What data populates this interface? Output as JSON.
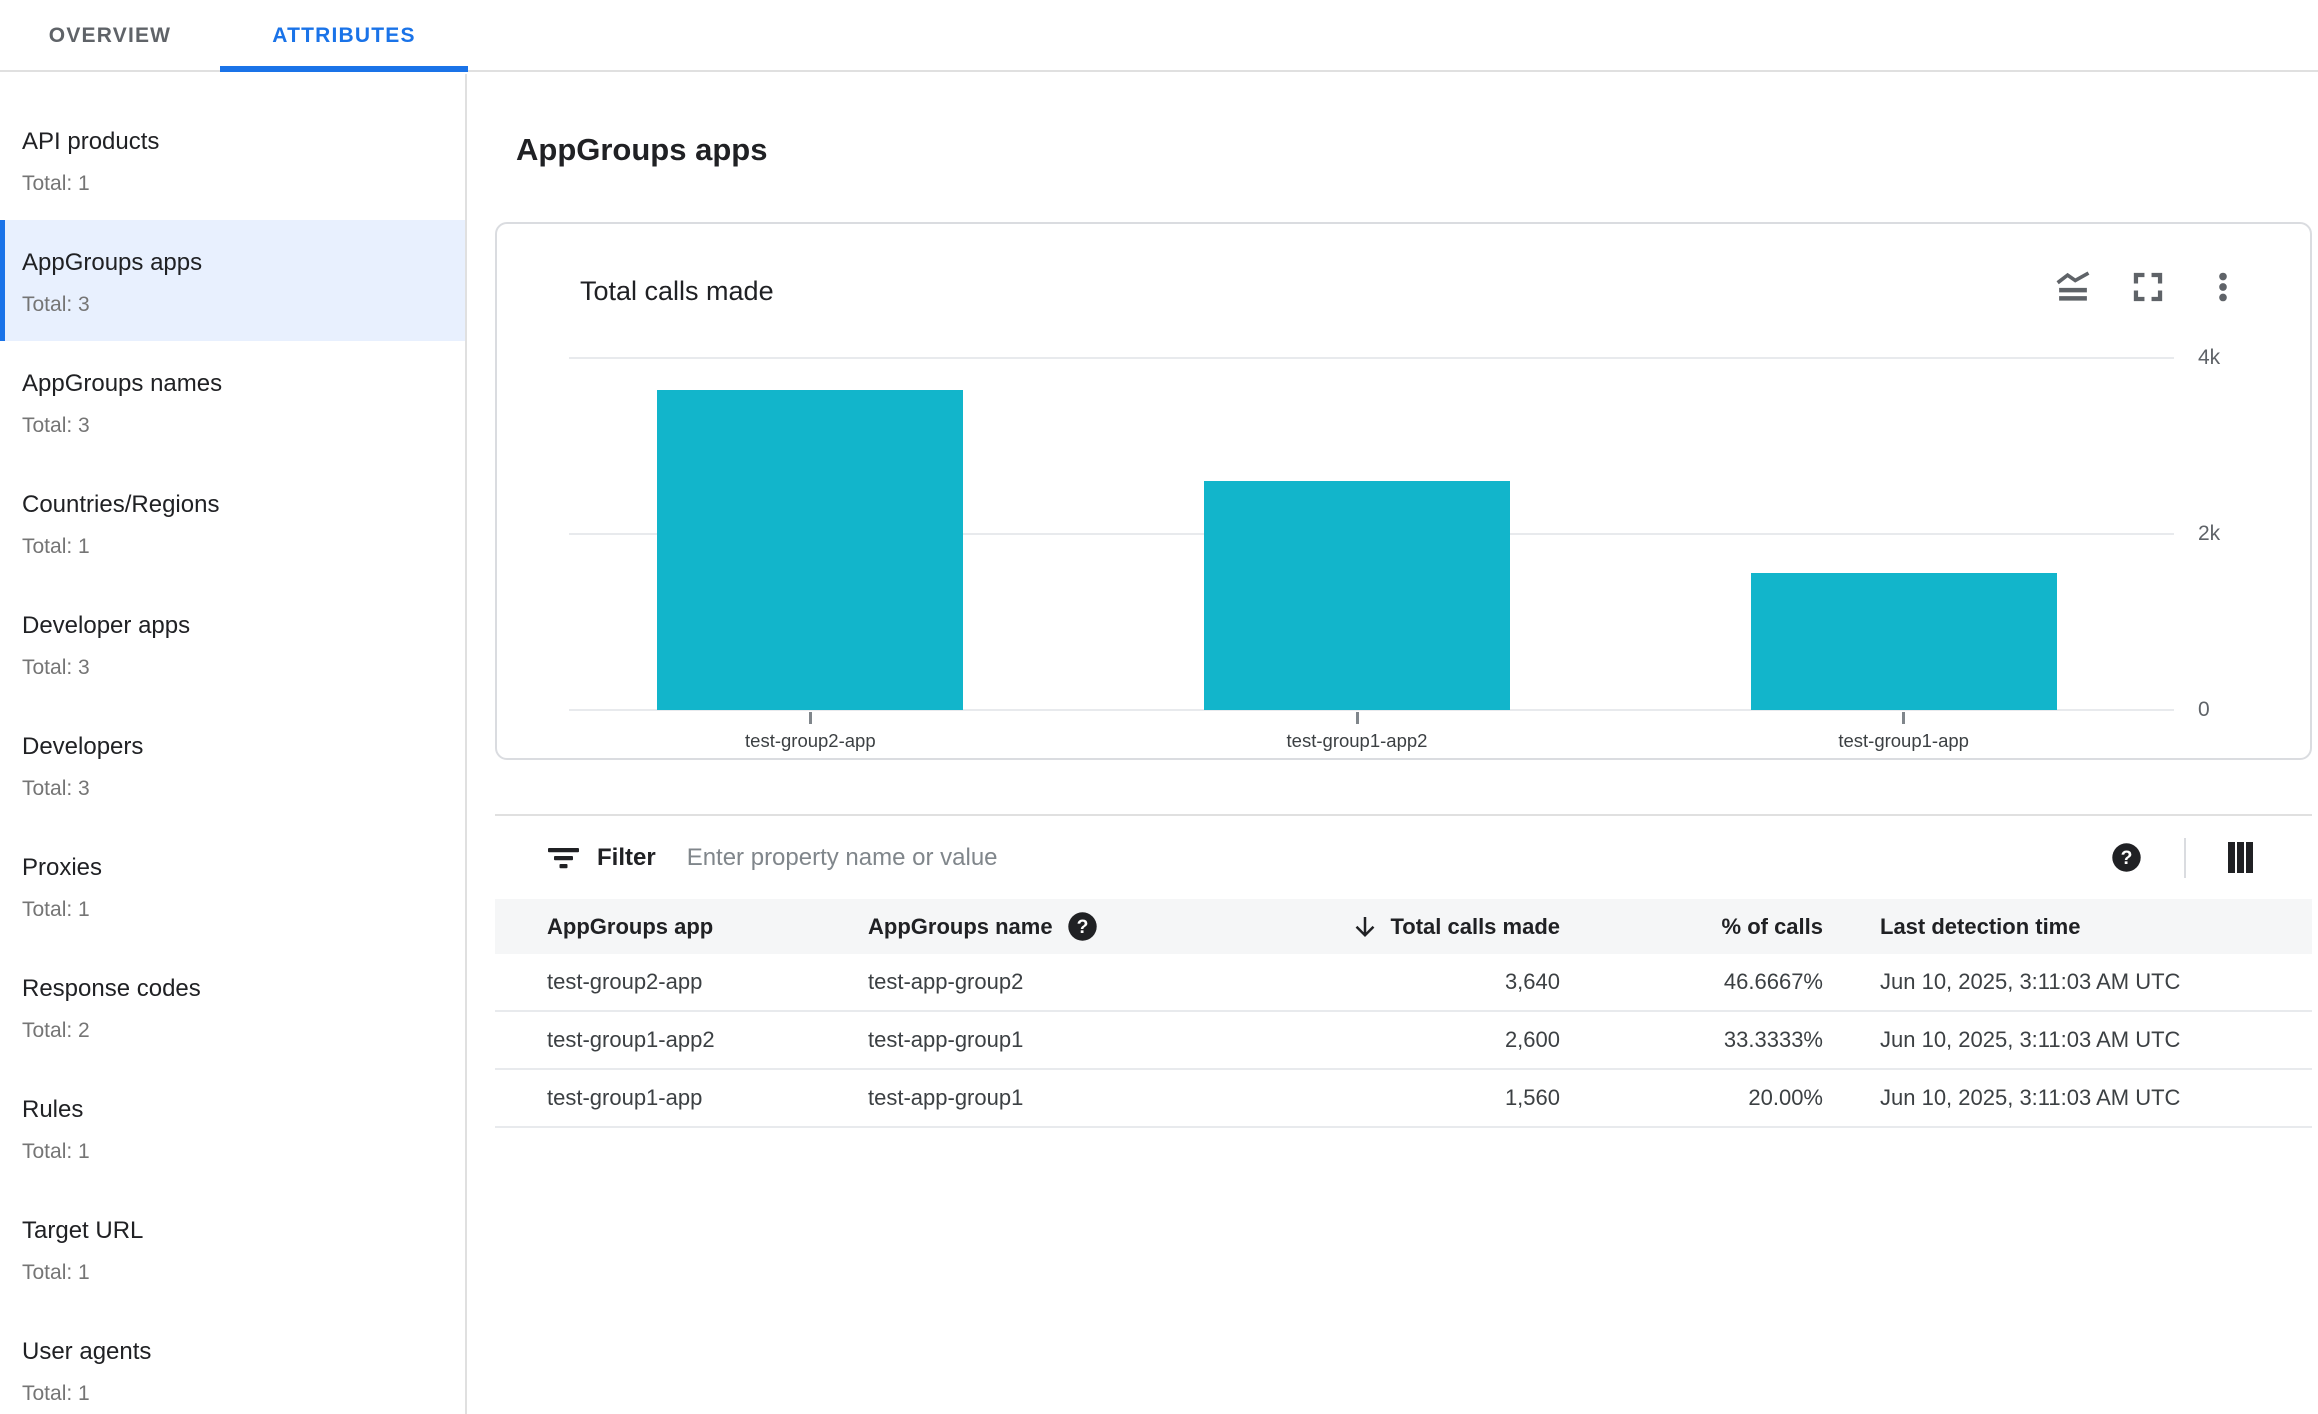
{
  "tabs": [
    {
      "label": "OVERVIEW",
      "active": false
    },
    {
      "label": "ATTRIBUTES",
      "active": true
    }
  ],
  "sidebar": {
    "items": [
      {
        "title": "API products",
        "total": "Total: 1",
        "selected": false
      },
      {
        "title": "AppGroups apps",
        "total": "Total: 3",
        "selected": true
      },
      {
        "title": "AppGroups names",
        "total": "Total: 3",
        "selected": false
      },
      {
        "title": "Countries/Regions",
        "total": "Total: 1",
        "selected": false
      },
      {
        "title": "Developer apps",
        "total": "Total: 3",
        "selected": false
      },
      {
        "title": "Developers",
        "total": "Total: 3",
        "selected": false
      },
      {
        "title": "Proxies",
        "total": "Total: 1",
        "selected": false
      },
      {
        "title": "Response codes",
        "total": "Total: 2",
        "selected": false
      },
      {
        "title": "Rules",
        "total": "Total: 1",
        "selected": false
      },
      {
        "title": "Target URL",
        "total": "Total: 1",
        "selected": false
      },
      {
        "title": "User agents",
        "total": "Total: 1",
        "selected": false
      }
    ]
  },
  "main": {
    "title": "AppGroups apps",
    "card": {
      "title": "Total calls made"
    },
    "filter": {
      "label": "Filter",
      "placeholder": "Enter property name or value",
      "value": ""
    },
    "table": {
      "columns": [
        {
          "label": "AppGroups app",
          "align": "left"
        },
        {
          "label": "AppGroups name",
          "align": "left",
          "help_icon": true
        },
        {
          "label": "Total calls made",
          "align": "right",
          "sort": "desc"
        },
        {
          "label": "% of calls",
          "align": "right"
        },
        {
          "label": "Last detection time",
          "align": "left"
        }
      ],
      "rows": [
        [
          "test-group2-app",
          "test-app-group2",
          "3,640",
          "46.6667%",
          "Jun 10, 2025, 3:11:03 AM UTC"
        ],
        [
          "test-group1-app2",
          "test-app-group1",
          "2,600",
          "33.3333%",
          "Jun 10, 2025, 3:11:03 AM UTC"
        ],
        [
          "test-group1-app",
          "test-app-group1",
          "1,560",
          "20.00%",
          "Jun 10, 2025, 3:11:03 AM UTC"
        ]
      ]
    }
  },
  "chart_data": {
    "type": "bar",
    "title": "Total calls made",
    "categories": [
      "test-group2-app",
      "test-group1-app2",
      "test-group1-app"
    ],
    "values": [
      3640,
      2600,
      1560
    ],
    "xlabel": "",
    "ylabel": "",
    "ylim": [
      0,
      4000
    ],
    "yticks": [
      {
        "value": 0,
        "label": "0"
      },
      {
        "value": 2000,
        "label": "2k"
      },
      {
        "value": 4000,
        "label": "4k"
      }
    ],
    "y_axis_side": "right",
    "grid": "horizontal",
    "legend": "none",
    "bar_color": "#12b5cb"
  },
  "colors": {
    "accent": "#1a73e8",
    "bar": "#12b5cb",
    "selected_bg": "#e8f0fe",
    "divider": "#e0e0e0"
  }
}
